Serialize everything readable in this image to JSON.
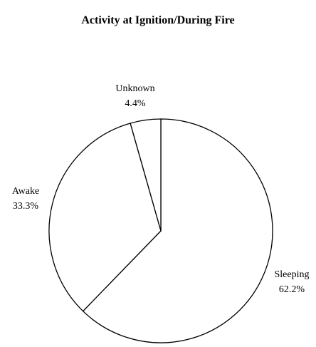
{
  "chart_data": {
    "type": "pie",
    "title": "Activity at Ignition/During Fire",
    "slices": [
      {
        "label": "Sleeping",
        "value": 62.2,
        "value_label": "62.2%"
      },
      {
        "label": "Awake",
        "value": 33.3,
        "value_label": "33.3%"
      },
      {
        "label": "Unknown",
        "value": 4.4,
        "value_label": "4.4%"
      }
    ],
    "start_angle": "12 o'clock",
    "direction": "clockwise",
    "legend": "none",
    "colors": {
      "fill": "#ffffff",
      "stroke": "#000000"
    }
  }
}
